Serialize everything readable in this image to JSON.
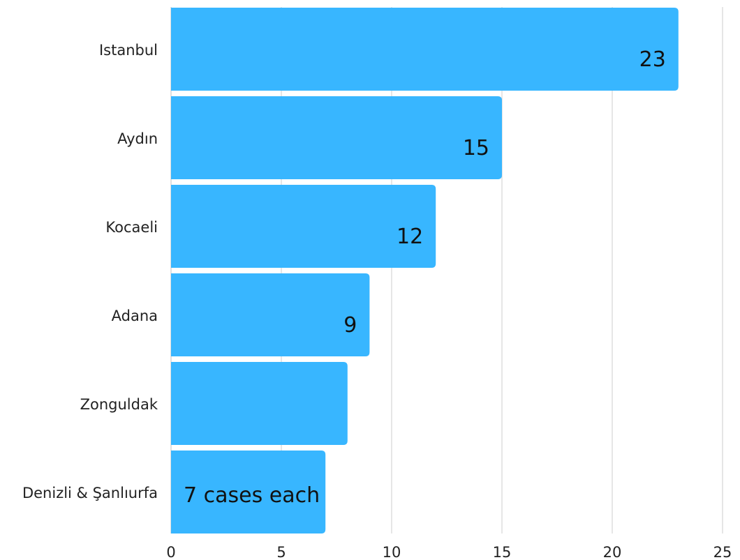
{
  "chart_data": {
    "type": "bar",
    "orientation": "horizontal",
    "categories": [
      "Istanbul",
      "Aydın",
      "Kocaeli",
      "Adana",
      "Zonguldak",
      "Denizli & Şanlıurfa"
    ],
    "values": [
      23,
      15,
      12,
      9,
      8,
      7
    ],
    "data_labels": [
      "23",
      "15",
      "12",
      "9",
      "",
      "7 cases each"
    ],
    "xlim": [
      0,
      25
    ],
    "xticks": [
      0,
      5,
      10,
      15,
      20,
      25
    ],
    "grid": "vertical",
    "legend": "none",
    "title": "",
    "xlabel": "",
    "ylabel": "",
    "colors": {
      "bar": "#38b6ff"
    }
  }
}
